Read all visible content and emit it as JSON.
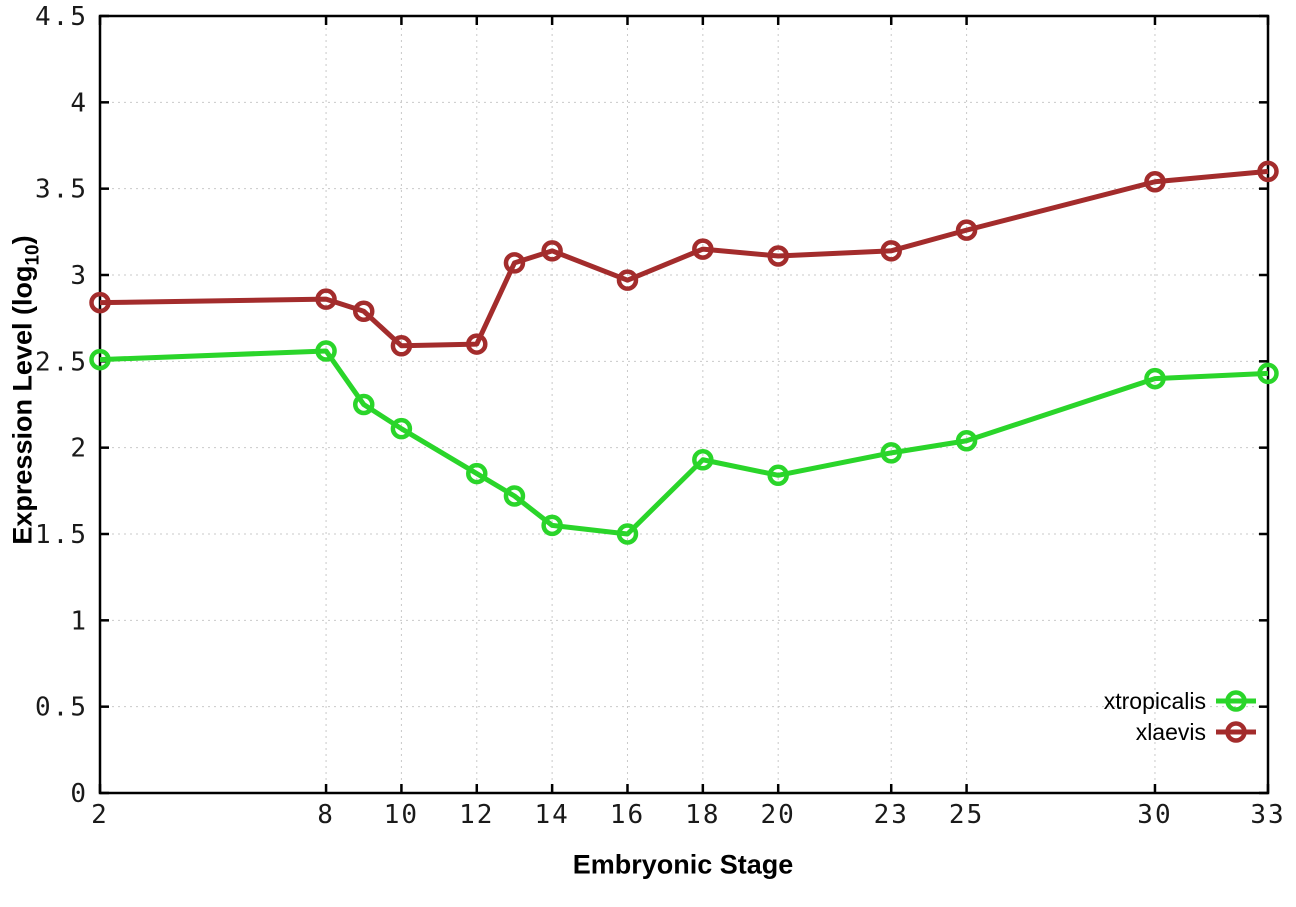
{
  "chart_data": {
    "type": "line",
    "title": "",
    "xlabel": "Embryonic Stage",
    "ylabel": "Expression Level (log10)",
    "ylabel_parts": {
      "main": "Expression Level (log",
      "sub": "10",
      "close": ")"
    },
    "xlim": [
      2,
      33
    ],
    "ylim": [
      0,
      4.5
    ],
    "grid": true,
    "legend_position": "inside bottom-right",
    "x_ticks": [
      2,
      8,
      10,
      12,
      14,
      16,
      18,
      20,
      23,
      25,
      30,
      33
    ],
    "x_tick_labels": [
      "2",
      "8",
      "10",
      "12",
      "14",
      "16",
      "18",
      "20",
      "23",
      "25",
      "30",
      "33"
    ],
    "y_ticks": [
      0,
      0.5,
      1,
      1.5,
      2,
      2.5,
      3,
      3.5,
      4,
      4.5
    ],
    "y_tick_labels": [
      "0",
      "0.5",
      "1",
      "1.5",
      "2",
      "2.5",
      "3",
      "3.5",
      "4",
      "4.5"
    ],
    "x": [
      2,
      8,
      9,
      10,
      12,
      13,
      14,
      16,
      18,
      20,
      23,
      25,
      30,
      33
    ],
    "series": [
      {
        "name": "xtropicalis",
        "color": "#2ad52a",
        "values": [
          2.51,
          2.56,
          2.25,
          2.11,
          1.85,
          1.72,
          1.55,
          1.5,
          1.93,
          1.84,
          1.97,
          2.04,
          2.4,
          2.43
        ]
      },
      {
        "name": "xlaevis",
        "color": "#a32c2c",
        "values": [
          2.84,
          2.86,
          2.79,
          2.59,
          2.6,
          3.07,
          3.14,
          2.97,
          3.15,
          3.11,
          3.14,
          3.26,
          3.54,
          3.6
        ]
      }
    ],
    "colors": {
      "grid": "#c9c9c9",
      "axis": "#000000",
      "tick_text": "#1a1a1a"
    }
  }
}
